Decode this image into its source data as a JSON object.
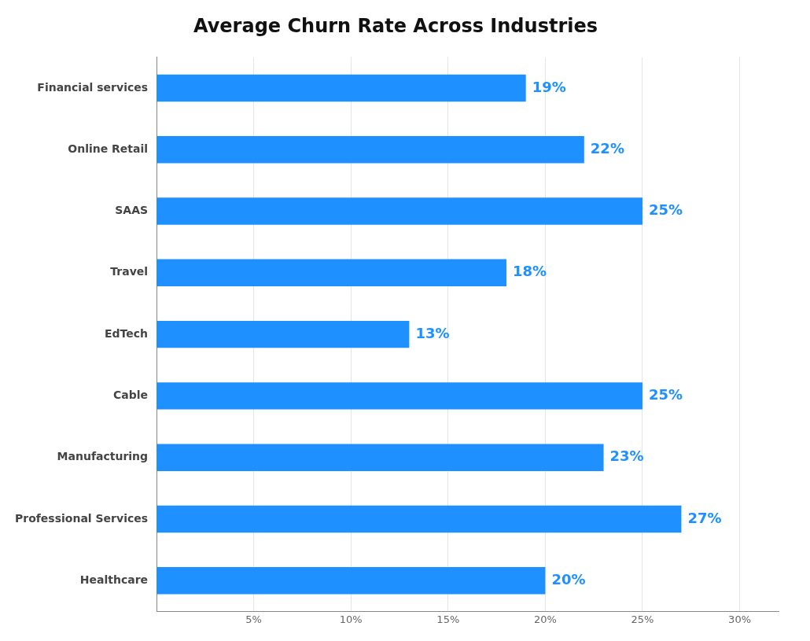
{
  "chart_data": {
    "type": "bar",
    "orientation": "horizontal",
    "title": "Average Churn Rate Across Industries",
    "categories": [
      "Financial services",
      "Online Retail",
      "SAAS",
      "Travel",
      "EdTech",
      "Cable",
      "Manufacturing",
      "Professional Services",
      "Healthcare"
    ],
    "values": [
      19,
      22,
      25,
      18,
      13,
      25,
      23,
      27,
      20
    ],
    "value_labels": [
      "19%",
      "22%",
      "25%",
      "18%",
      "13%",
      "25%",
      "23%",
      "27%",
      "20%"
    ],
    "data_labels": true,
    "color": "#1E90FF",
    "xlim": [
      0,
      32
    ],
    "xticks": [
      {
        "value": 5,
        "label": "5%"
      },
      {
        "value": 10,
        "label": "10%"
      },
      {
        "value": 15,
        "label": "15%"
      },
      {
        "value": 20,
        "label": "20%"
      },
      {
        "value": 25,
        "label": "25%"
      },
      {
        "value": 30,
        "label": "30%"
      }
    ],
    "grid": true
  }
}
